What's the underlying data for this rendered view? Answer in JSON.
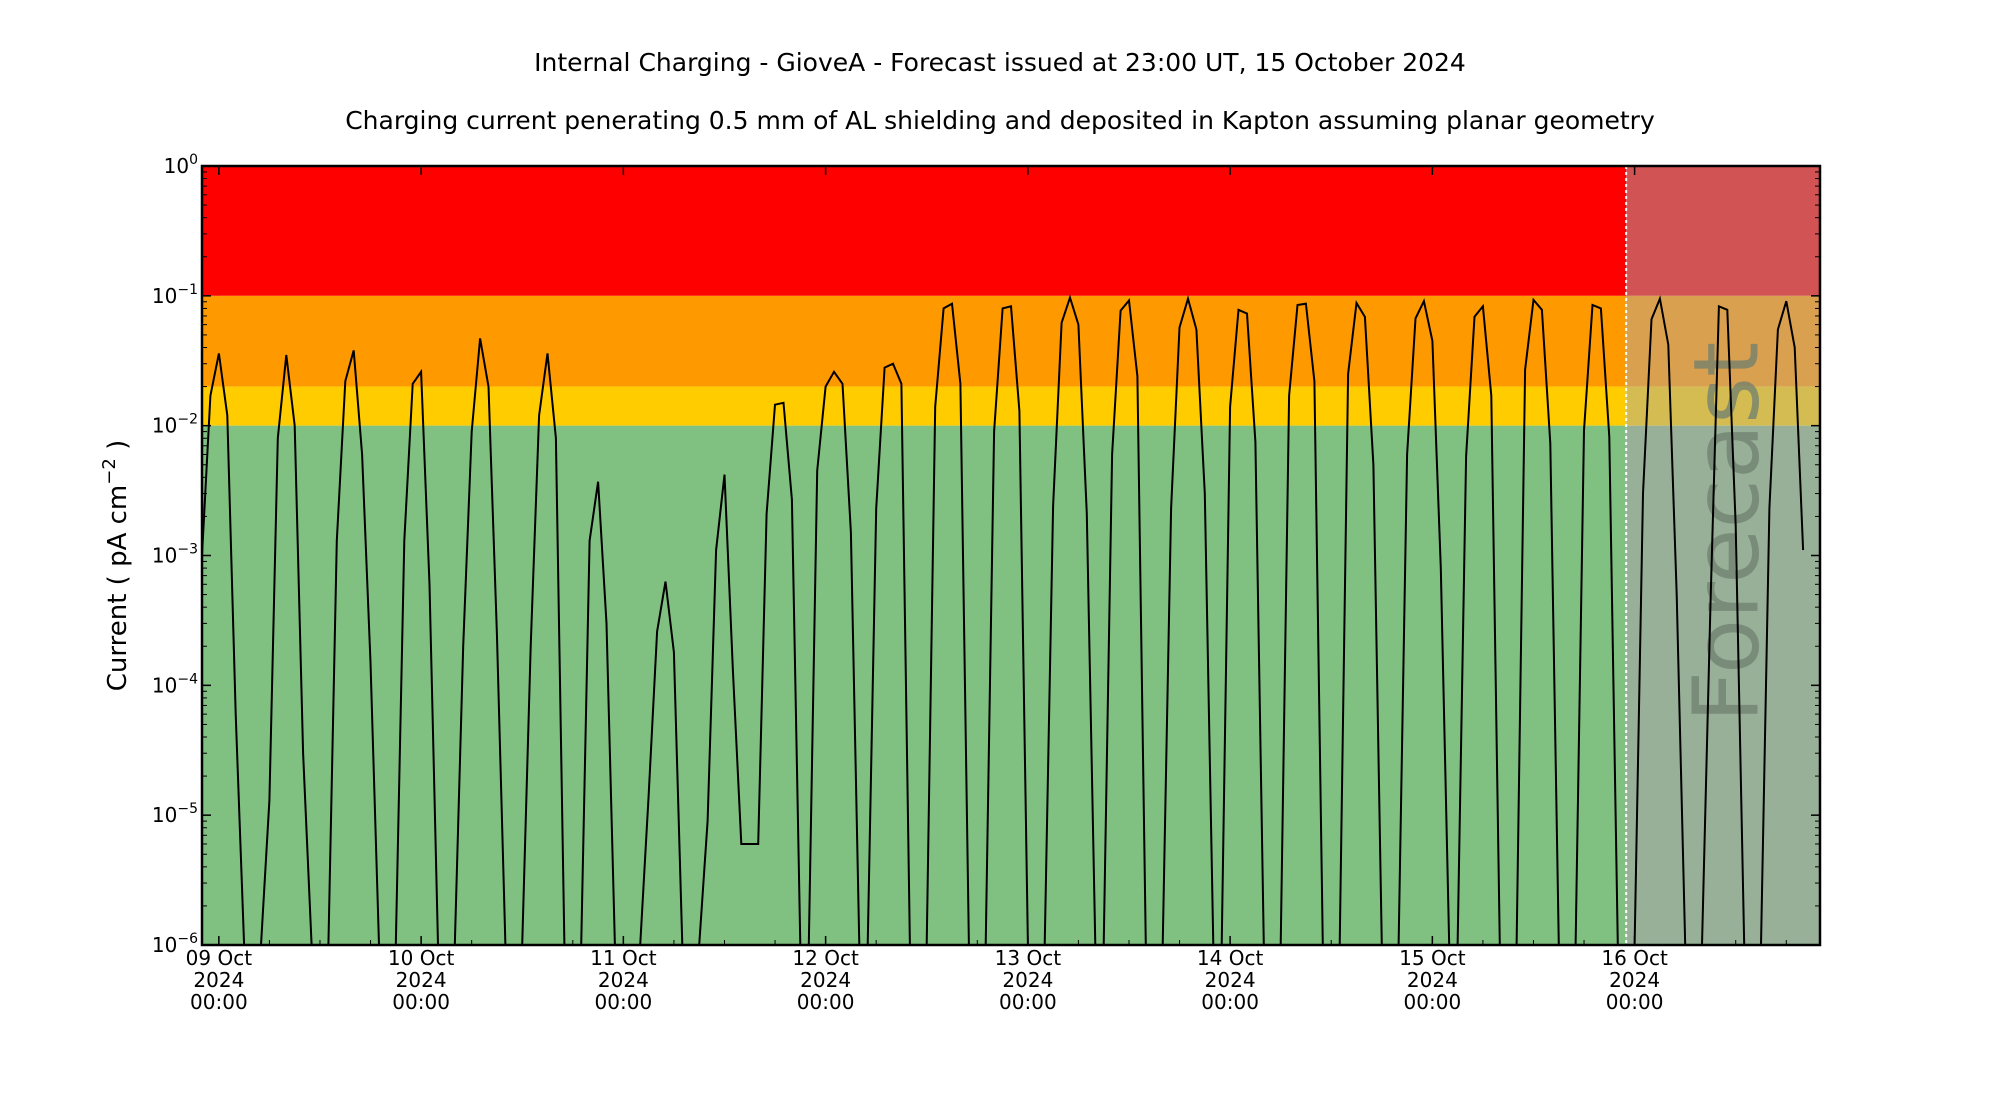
{
  "title": "Internal Charging - GioveA - Forecast issued at 23:00 UT, 15 October 2024",
  "subtitle": "Charging current penerating 0.5 mm of AL shielding and deposited in Kapton assuming planar geometry",
  "chart_data": {
    "type": "line",
    "ylabel": "Current ( pA cm⁻² )",
    "ylabel_parts": {
      "pre": "Current ( pA cm",
      "sup": "−2",
      "post": " )"
    },
    "yscale": "log",
    "ylim": [
      1e-06,
      1
    ],
    "xlim": [
      "2024-10-08T22:00",
      "2024-10-16T22:00"
    ],
    "forecast_start": "2024-10-15T23:00",
    "forecast_label": "Forecast",
    "bands": [
      {
        "from": 0.1,
        "to": 1,
        "color": "#ff0000",
        "forecast_color": "#d25353"
      },
      {
        "from": 0.02,
        "to": 0.1,
        "color": "#ff9900",
        "forecast_color": "#d9a050"
      },
      {
        "from": 0.01,
        "to": 0.02,
        "color": "#ffcc00",
        "forecast_color": "#d4bc52"
      },
      {
        "from": 1e-06,
        "to": 0.01,
        "color": "#80c080",
        "forecast_color": "#98b098"
      }
    ],
    "yticks": [
      {
        "value": 1,
        "base": "10",
        "exp": "0"
      },
      {
        "value": 0.1,
        "base": "10",
        "exp": "−1"
      },
      {
        "value": 0.01,
        "base": "10",
        "exp": "−2"
      },
      {
        "value": 0.001,
        "base": "10",
        "exp": "−3"
      },
      {
        "value": 0.0001,
        "base": "10",
        "exp": "−4"
      },
      {
        "value": 1e-05,
        "base": "10",
        "exp": "−5"
      },
      {
        "value": 1e-06,
        "base": "10",
        "exp": "−6"
      }
    ],
    "xticks": [
      {
        "t": "2024-10-09T00:00",
        "lines": [
          "09 Oct",
          "2024",
          "00:00"
        ]
      },
      {
        "t": "2024-10-10T00:00",
        "lines": [
          "10 Oct",
          "2024",
          "00:00"
        ]
      },
      {
        "t": "2024-10-11T00:00",
        "lines": [
          "11 Oct",
          "2024",
          "00:00"
        ]
      },
      {
        "t": "2024-10-12T00:00",
        "lines": [
          "12 Oct",
          "2024",
          "00:00"
        ]
      },
      {
        "t": "2024-10-13T00:00",
        "lines": [
          "13 Oct",
          "2024",
          "00:00"
        ]
      },
      {
        "t": "2024-10-14T00:00",
        "lines": [
          "14 Oct",
          "2024",
          "00:00"
        ]
      },
      {
        "t": "2024-10-15T00:00",
        "lines": [
          "15 Oct",
          "2024",
          "00:00"
        ]
      },
      {
        "t": "2024-10-16T00:00",
        "lines": [
          "16 Oct",
          "2024",
          "00:00"
        ]
      }
    ],
    "series": [
      {
        "points": [
          [
            "2024-10-08T22:00",
            0.001
          ],
          [
            "2024-10-08T23:00",
            0.017
          ],
          [
            "2024-10-09T00:00",
            0.036
          ],
          [
            "2024-10-09T01:00",
            0.012
          ],
          [
            "2024-10-09T02:00",
            6e-05
          ],
          [
            "2024-10-09T03:00",
            1e-06
          ],
          [
            "2024-10-09T05:00",
            1e-06
          ],
          [
            "2024-10-09T06:00",
            1.3e-05
          ],
          [
            "2024-10-09T07:00",
            0.008
          ],
          [
            "2024-10-09T08:00",
            0.035
          ],
          [
            "2024-10-09T09:00",
            0.01
          ],
          [
            "2024-10-09T10:00",
            3e-05
          ],
          [
            "2024-10-09T11:00",
            1e-06
          ],
          [
            "2024-10-09T13:00",
            1e-06
          ],
          [
            "2024-10-09T14:00",
            0.0013
          ],
          [
            "2024-10-09T15:00",
            0.022
          ],
          [
            "2024-10-09T16:00",
            0.038
          ],
          [
            "2024-10-09T17:00",
            0.006
          ],
          [
            "2024-10-09T18:00",
            0.00015
          ],
          [
            "2024-10-09T19:00",
            1e-06
          ],
          [
            "2024-10-09T21:00",
            1e-06
          ],
          [
            "2024-10-09T22:00",
            0.0013
          ],
          [
            "2024-10-09T23:00",
            0.021
          ],
          [
            "2024-10-10T00:00",
            0.026
          ],
          [
            "2024-10-10T01:00",
            0.0006
          ],
          [
            "2024-10-10T02:00",
            1e-06
          ],
          [
            "2024-10-10T04:00",
            1e-06
          ],
          [
            "2024-10-10T05:00",
            0.0002
          ],
          [
            "2024-10-10T06:00",
            0.009
          ],
          [
            "2024-10-10T07:00",
            0.047
          ],
          [
            "2024-10-10T08:00",
            0.02
          ],
          [
            "2024-10-10T09:00",
            0.00025
          ],
          [
            "2024-10-10T10:00",
            1e-06
          ],
          [
            "2024-10-10T12:00",
            1e-06
          ],
          [
            "2024-10-10T13:00",
            0.0002
          ],
          [
            "2024-10-10T14:00",
            0.012
          ],
          [
            "2024-10-10T15:00",
            0.036
          ],
          [
            "2024-10-10T16:00",
            0.008
          ],
          [
            "2024-10-10T17:00",
            1e-06
          ],
          [
            "2024-10-10T19:00",
            1e-06
          ],
          [
            "2024-10-10T20:00",
            0.0013
          ],
          [
            "2024-10-10T21:00",
            0.0037
          ],
          [
            "2024-10-10T22:00",
            0.0003
          ],
          [
            "2024-10-10T23:00",
            1e-06
          ],
          [
            "2024-10-11T02:00",
            1e-06
          ],
          [
            "2024-10-11T03:00",
            1.4e-05
          ],
          [
            "2024-10-11T04:00",
            0.00026
          ],
          [
            "2024-10-11T05:00",
            0.00063
          ],
          [
            "2024-10-11T06:00",
            0.00018
          ],
          [
            "2024-10-11T07:00",
            1e-06
          ],
          [
            "2024-10-11T09:00",
            1e-06
          ],
          [
            "2024-10-11T10:00",
            9e-06
          ],
          [
            "2024-10-11T11:00",
            0.0011
          ],
          [
            "2024-10-11T12:00",
            0.0042
          ],
          [
            "2024-10-11T13:00",
            0.00013
          ],
          [
            "2024-10-11T14:00",
            6e-06
          ],
          [
            "2024-10-11T16:00",
            6e-06
          ],
          [
            "2024-10-11T17:00",
            0.0021
          ],
          [
            "2024-10-11T18:00",
            0.0145
          ],
          [
            "2024-10-11T19:00",
            0.015
          ],
          [
            "2024-10-11T20:00",
            0.0027
          ],
          [
            "2024-10-11T21:00",
            1e-06
          ],
          [
            "2024-10-11T22:00",
            1e-06
          ],
          [
            "2024-10-11T23:00",
            0.0045
          ],
          [
            "2024-10-12T00:00",
            0.02
          ],
          [
            "2024-10-12T01:00",
            0.026
          ],
          [
            "2024-10-12T02:00",
            0.021
          ],
          [
            "2024-10-12T03:00",
            0.0015
          ],
          [
            "2024-10-12T04:00",
            1e-06
          ],
          [
            "2024-10-12T05:00",
            1e-06
          ],
          [
            "2024-10-12T06:00",
            0.0023
          ],
          [
            "2024-10-12T07:00",
            0.028
          ],
          [
            "2024-10-12T08:00",
            0.03
          ],
          [
            "2024-10-12T09:00",
            0.021
          ],
          [
            "2024-10-12T10:00",
            1e-06
          ],
          [
            "2024-10-12T12:00",
            1e-06
          ],
          [
            "2024-10-12T13:00",
            0.014
          ],
          [
            "2024-10-12T14:00",
            0.08
          ],
          [
            "2024-10-12T15:00",
            0.087
          ],
          [
            "2024-10-12T16:00",
            0.021
          ],
          [
            "2024-10-12T17:00",
            1e-06
          ],
          [
            "2024-10-12T19:00",
            1e-06
          ],
          [
            "2024-10-12T20:00",
            0.009
          ],
          [
            "2024-10-12T21:00",
            0.08
          ],
          [
            "2024-10-12T22:00",
            0.083
          ],
          [
            "2024-10-12T23:00",
            0.013
          ],
          [
            "2024-10-13T00:00",
            1e-06
          ],
          [
            "2024-10-13T02:00",
            1e-06
          ],
          [
            "2024-10-13T03:00",
            0.0024
          ],
          [
            "2024-10-13T04:00",
            0.062
          ],
          [
            "2024-10-13T05:00",
            0.097
          ],
          [
            "2024-10-13T06:00",
            0.06
          ],
          [
            "2024-10-13T07:00",
            0.0021
          ],
          [
            "2024-10-13T08:00",
            1e-06
          ],
          [
            "2024-10-13T09:00",
            1e-06
          ],
          [
            "2024-10-13T10:00",
            0.006
          ],
          [
            "2024-10-13T11:00",
            0.077
          ],
          [
            "2024-10-13T12:00",
            0.092
          ],
          [
            "2024-10-13T13:00",
            0.024
          ],
          [
            "2024-10-13T14:00",
            1e-06
          ],
          [
            "2024-10-13T16:00",
            1e-06
          ],
          [
            "2024-10-13T17:00",
            0.0023
          ],
          [
            "2024-10-13T18:00",
            0.057
          ],
          [
            "2024-10-13T19:00",
            0.095
          ],
          [
            "2024-10-13T20:00",
            0.055
          ],
          [
            "2024-10-13T21:00",
            0.003
          ],
          [
            "2024-10-13T22:00",
            1e-06
          ],
          [
            "2024-10-13T23:00",
            1e-06
          ],
          [
            "2024-10-14T00:00",
            0.014
          ],
          [
            "2024-10-14T01:00",
            0.078
          ],
          [
            "2024-10-14T02:00",
            0.073
          ],
          [
            "2024-10-14T03:00",
            0.0075
          ],
          [
            "2024-10-14T04:00",
            1e-06
          ],
          [
            "2024-10-14T06:00",
            1e-06
          ],
          [
            "2024-10-14T07:00",
            0.017
          ],
          [
            "2024-10-14T08:00",
            0.085
          ],
          [
            "2024-10-14T09:00",
            0.087
          ],
          [
            "2024-10-14T10:00",
            0.022
          ],
          [
            "2024-10-14T11:00",
            1e-06
          ],
          [
            "2024-10-14T13:00",
            1e-06
          ],
          [
            "2024-10-14T14:00",
            0.025
          ],
          [
            "2024-10-14T15:00",
            0.088
          ],
          [
            "2024-10-14T16:00",
            0.069
          ],
          [
            "2024-10-14T17:00",
            0.005
          ],
          [
            "2024-10-14T18:00",
            1e-06
          ],
          [
            "2024-10-14T20:00",
            1e-06
          ],
          [
            "2024-10-14T21:00",
            0.006
          ],
          [
            "2024-10-14T22:00",
            0.067
          ],
          [
            "2024-10-14T23:00",
            0.091
          ],
          [
            "2024-10-15T00:00",
            0.045
          ],
          [
            "2024-10-15T01:00",
            0.0008
          ],
          [
            "2024-10-15T02:00",
            1e-06
          ],
          [
            "2024-10-15T03:00",
            1e-06
          ],
          [
            "2024-10-15T04:00",
            0.0058
          ],
          [
            "2024-10-15T05:00",
            0.069
          ],
          [
            "2024-10-15T06:00",
            0.083
          ],
          [
            "2024-10-15T07:00",
            0.017
          ],
          [
            "2024-10-15T08:00",
            1e-06
          ],
          [
            "2024-10-15T10:00",
            1e-06
          ],
          [
            "2024-10-15T11:00",
            0.027
          ],
          [
            "2024-10-15T12:00",
            0.093
          ],
          [
            "2024-10-15T13:00",
            0.078
          ],
          [
            "2024-10-15T14:00",
            0.0073
          ],
          [
            "2024-10-15T15:00",
            1e-06
          ],
          [
            "2024-10-15T17:00",
            1e-06
          ],
          [
            "2024-10-15T18:00",
            0.0092
          ],
          [
            "2024-10-15T19:00",
            0.085
          ],
          [
            "2024-10-15T20:00",
            0.08
          ],
          [
            "2024-10-15T21:00",
            0.0082
          ],
          [
            "2024-10-15T22:00",
            1e-06
          ],
          [
            "2024-10-16T00:00",
            1e-06
          ],
          [
            "2024-10-16T01:00",
            0.003
          ],
          [
            "2024-10-16T02:00",
            0.066
          ],
          [
            "2024-10-16T03:00",
            0.095
          ],
          [
            "2024-10-16T04:00",
            0.042
          ],
          [
            "2024-10-16T05:00",
            0.0005
          ],
          [
            "2024-10-16T06:00",
            1e-06
          ],
          [
            "2024-10-16T08:00",
            1e-06
          ],
          [
            "2024-10-16T09:00",
            0.0004
          ],
          [
            "2024-10-16T10:00",
            0.083
          ],
          [
            "2024-10-16T11:00",
            0.078
          ],
          [
            "2024-10-16T12:00",
            0.0017
          ],
          [
            "2024-10-16T13:00",
            1e-06
          ],
          [
            "2024-10-16T15:00",
            1e-06
          ],
          [
            "2024-10-16T16:00",
            0.0023
          ],
          [
            "2024-10-16T17:00",
            0.055
          ],
          [
            "2024-10-16T18:00",
            0.091
          ],
          [
            "2024-10-16T19:00",
            0.04
          ],
          [
            "2024-10-16T20:00",
            0.0011
          ]
        ]
      }
    ]
  }
}
